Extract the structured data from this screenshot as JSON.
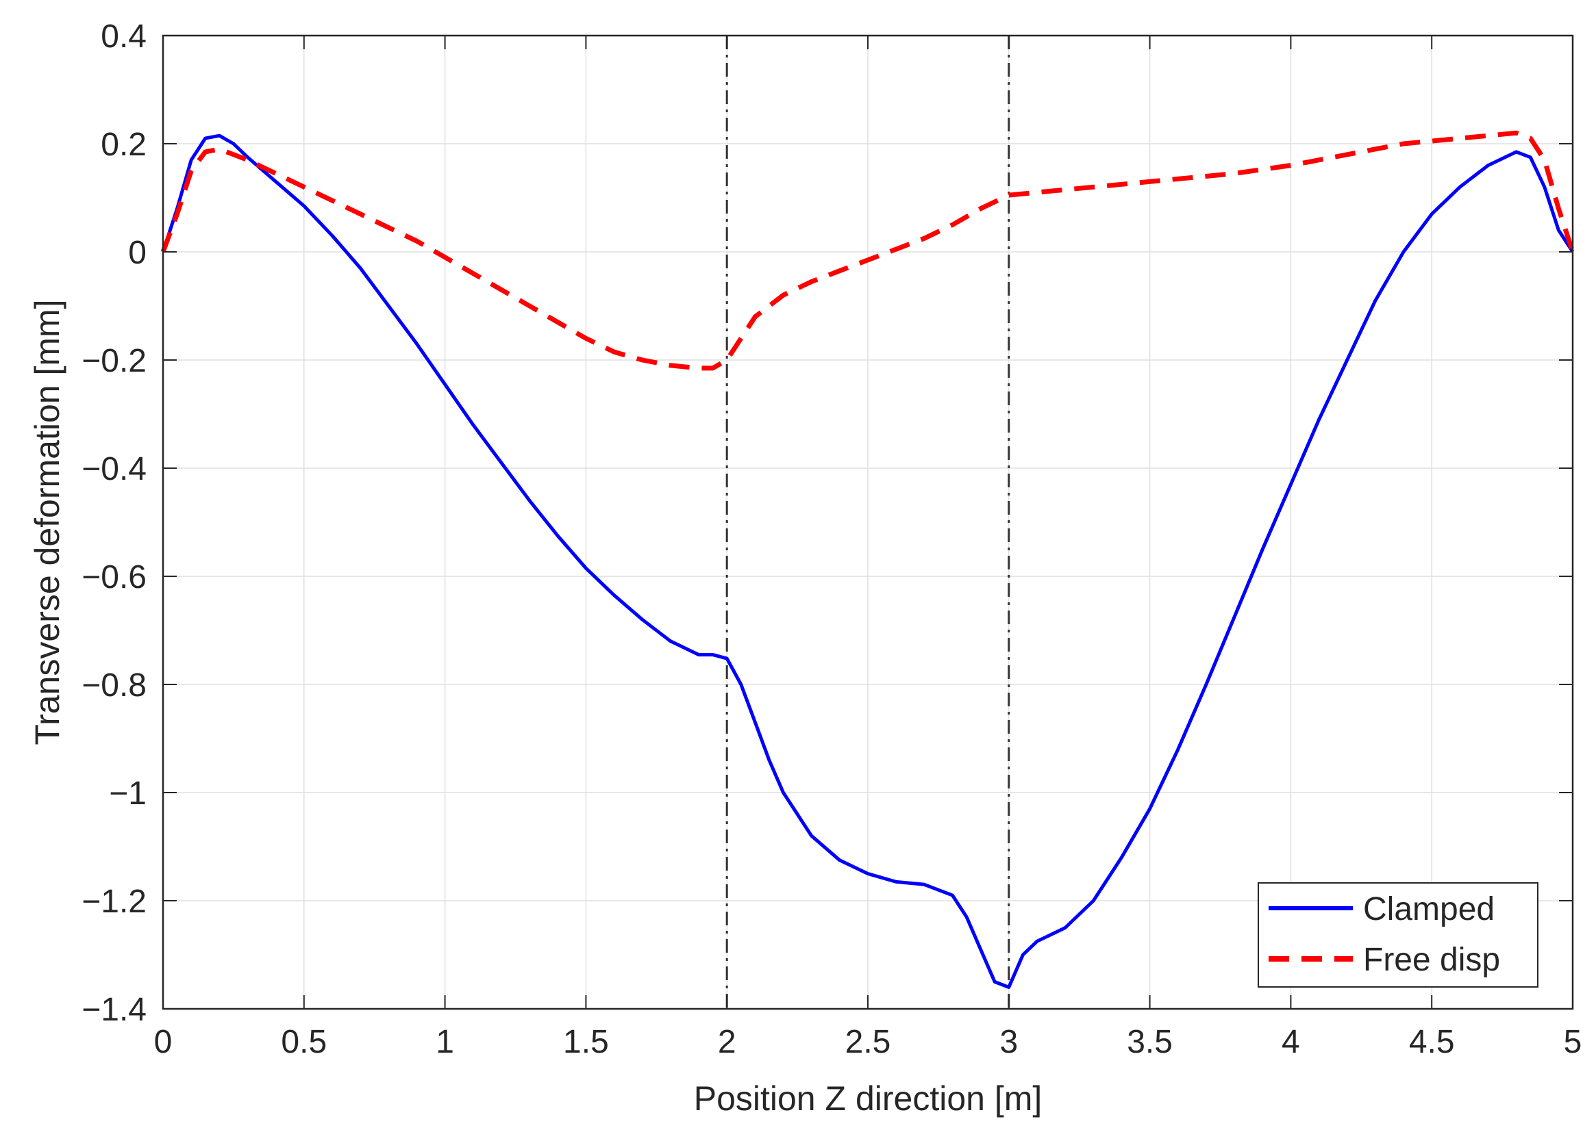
{
  "chart_data": {
    "type": "line",
    "title": "",
    "xlabel": "Position Z direction [m]",
    "ylabel": "Transverse deformation [mm]",
    "xlim": [
      0,
      5
    ],
    "ylim": [
      -1.4,
      0.4
    ],
    "xticks": [
      0,
      0.5,
      1,
      1.5,
      2,
      2.5,
      3,
      3.5,
      4,
      4.5,
      5
    ],
    "xtick_labels": [
      "0",
      "0.5",
      "1",
      "1.5",
      "2",
      "2.5",
      "3",
      "3.5",
      "4",
      "4.5",
      "5"
    ],
    "yticks": [
      -1.4,
      -1.2,
      -1,
      -0.8,
      -0.6,
      -0.4,
      -0.2,
      0,
      0.2,
      0.4
    ],
    "ytick_labels": [
      "−1.4",
      "−1.2",
      "−1",
      "−0.8",
      "−0.6",
      "−0.4",
      "−0.2",
      "0",
      "0.2",
      "0.4"
    ],
    "grid": true,
    "legend_position": "bottom-right",
    "reference_lines_x": [
      2,
      3
    ],
    "series": [
      {
        "name": "Clamped",
        "color": "#0000ff",
        "style": "solid",
        "x": [
          0,
          0.05,
          0.1,
          0.15,
          0.2,
          0.25,
          0.3,
          0.4,
          0.5,
          0.6,
          0.7,
          0.8,
          0.9,
          1.0,
          1.1,
          1.2,
          1.3,
          1.4,
          1.5,
          1.6,
          1.7,
          1.8,
          1.9,
          1.95,
          2.0,
          2.05,
          2.1,
          2.15,
          2.2,
          2.3,
          2.4,
          2.5,
          2.6,
          2.7,
          2.8,
          2.85,
          2.9,
          2.95,
          3.0,
          3.05,
          3.1,
          3.2,
          3.3,
          3.4,
          3.5,
          3.6,
          3.7,
          3.8,
          3.9,
          4.0,
          4.1,
          4.2,
          4.3,
          4.4,
          4.5,
          4.6,
          4.7,
          4.8,
          4.85,
          4.9,
          4.95,
          5.0
        ],
        "y": [
          0,
          0.08,
          0.17,
          0.21,
          0.215,
          0.2,
          0.175,
          0.13,
          0.085,
          0.03,
          -0.03,
          -0.1,
          -0.17,
          -0.245,
          -0.32,
          -0.39,
          -0.46,
          -0.525,
          -0.585,
          -0.635,
          -0.68,
          -0.72,
          -0.745,
          -0.745,
          -0.752,
          -0.8,
          -0.87,
          -0.94,
          -1.0,
          -1.08,
          -1.125,
          -1.15,
          -1.165,
          -1.17,
          -1.19,
          -1.23,
          -1.29,
          -1.35,
          -1.36,
          -1.3,
          -1.275,
          -1.25,
          -1.2,
          -1.12,
          -1.03,
          -0.92,
          -0.8,
          -0.675,
          -0.55,
          -0.43,
          -0.31,
          -0.2,
          -0.09,
          0.0,
          0.07,
          0.12,
          0.16,
          0.185,
          0.175,
          0.12,
          0.04,
          0.0
        ]
      },
      {
        "name": "Free disp",
        "color": "#ff0000",
        "style": "dashed",
        "x": [
          0,
          0.05,
          0.1,
          0.15,
          0.2,
          0.3,
          0.4,
          0.5,
          0.6,
          0.7,
          0.8,
          0.9,
          1.0,
          1.1,
          1.2,
          1.3,
          1.4,
          1.5,
          1.6,
          1.7,
          1.8,
          1.9,
          1.95,
          2.0,
          2.05,
          2.1,
          2.2,
          2.3,
          2.4,
          2.5,
          2.6,
          2.7,
          2.8,
          2.9,
          3.0,
          3.1,
          3.2,
          3.4,
          3.6,
          3.8,
          4.0,
          4.2,
          4.4,
          4.6,
          4.7,
          4.8,
          4.85,
          4.9,
          4.95,
          5.0
        ],
        "y": [
          0,
          0.07,
          0.15,
          0.185,
          0.19,
          0.17,
          0.145,
          0.12,
          0.095,
          0.07,
          0.045,
          0.02,
          -0.01,
          -0.04,
          -0.07,
          -0.1,
          -0.13,
          -0.16,
          -0.185,
          -0.2,
          -0.21,
          -0.215,
          -0.215,
          -0.2,
          -0.16,
          -0.12,
          -0.08,
          -0.055,
          -0.035,
          -0.015,
          0.005,
          0.025,
          0.05,
          0.08,
          0.105,
          0.11,
          0.115,
          0.125,
          0.135,
          0.145,
          0.16,
          0.18,
          0.2,
          0.21,
          0.215,
          0.22,
          0.21,
          0.17,
          0.08,
          0.0
        ]
      }
    ]
  }
}
